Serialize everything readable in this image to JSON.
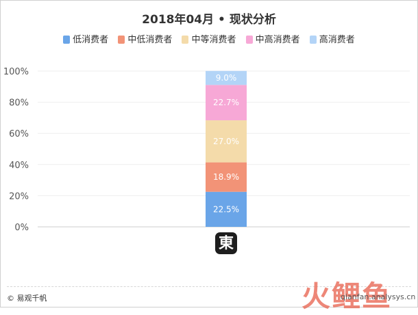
{
  "chart_data": {
    "type": "bar",
    "stacked": true,
    "title": "2018年04月 • 现状分析",
    "categories": [
      ""
    ],
    "ylim": [
      0,
      100
    ],
    "yticks": [
      "0%",
      "20%",
      "40%",
      "60%",
      "80%",
      "100%"
    ],
    "legend_position": "top",
    "grid": true,
    "series": [
      {
        "name": "低消费者",
        "values": [
          22.5
        ],
        "label": "22.5%",
        "color": "#6aa5e8"
      },
      {
        "name": "中低消费者",
        "values": [
          18.9
        ],
        "label": "18.9%",
        "color": "#f29377"
      },
      {
        "name": "中等消费者",
        "values": [
          27.0
        ],
        "label": "27.0%",
        "color": "#f4dbaa"
      },
      {
        "name": "中高消费者",
        "values": [
          22.7
        ],
        "label": "22.7%",
        "color": "#f7a8d6"
      },
      {
        "name": "高消费者",
        "values": [
          9.0
        ],
        "label": "9.0%",
        "color": "#b3d4f7"
      }
    ]
  },
  "category_icon": {
    "name": "jd-app-icon",
    "glyph": "東"
  },
  "footer": {
    "copyright": "© 易观千帆",
    "watermark": "火鲤鱼",
    "source_url": "qianfan.analysys.cn"
  }
}
